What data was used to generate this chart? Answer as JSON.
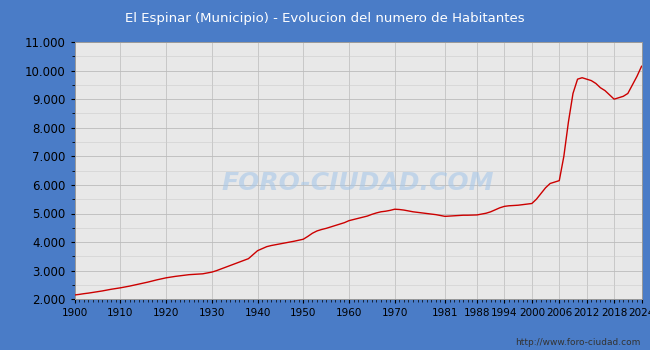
{
  "title": "El Espinar (Municipio) - Evolucion del numero de Habitantes",
  "title_bg_color": "#4a7cc7",
  "title_text_color": "#ffffff",
  "line_color": "#cc0000",
  "bg_color": "#4a7cc7",
  "plot_bg_color": "#e8e8e8",
  "watermark": "FORO-CIUDAD.COM",
  "url": "http://www.foro-ciudad.com",
  "years_full": [
    1900,
    1901,
    1902,
    1903,
    1904,
    1905,
    1906,
    1907,
    1908,
    1909,
    1910,
    1911,
    1912,
    1913,
    1914,
    1915,
    1916,
    1917,
    1918,
    1919,
    1920,
    1921,
    1922,
    1923,
    1924,
    1925,
    1926,
    1927,
    1928,
    1929,
    1930,
    1931,
    1932,
    1933,
    1934,
    1935,
    1936,
    1937,
    1938,
    1939,
    1940,
    1941,
    1942,
    1943,
    1944,
    1945,
    1946,
    1947,
    1948,
    1949,
    1950,
    1951,
    1952,
    1953,
    1954,
    1955,
    1956,
    1957,
    1958,
    1959,
    1960,
    1961,
    1962,
    1963,
    1964,
    1965,
    1966,
    1967,
    1968,
    1969,
    1970,
    1971,
    1972,
    1973,
    1974,
    1975,
    1976,
    1977,
    1978,
    1979,
    1981,
    1982,
    1983,
    1984,
    1985,
    1986,
    1987,
    1988,
    1989,
    1990,
    1991,
    1992,
    1993,
    1994,
    1995,
    1996,
    1997,
    1998,
    1999,
    2000,
    2001,
    2002,
    2003,
    2004,
    2005,
    2006,
    2007,
    2008,
    2009,
    2010,
    2011,
    2012,
    2013,
    2014,
    2015,
    2016,
    2017,
    2018,
    2019,
    2020,
    2021,
    2022,
    2023,
    2024
  ],
  "population_full": [
    2150,
    2170,
    2195,
    2215,
    2240,
    2265,
    2290,
    2320,
    2350,
    2375,
    2400,
    2430,
    2460,
    2495,
    2530,
    2565,
    2600,
    2640,
    2680,
    2715,
    2750,
    2775,
    2800,
    2820,
    2840,
    2860,
    2870,
    2880,
    2890,
    2920,
    2950,
    3000,
    3060,
    3120,
    3180,
    3240,
    3300,
    3360,
    3420,
    3560,
    3700,
    3770,
    3840,
    3880,
    3910,
    3940,
    3970,
    4000,
    4030,
    4065,
    4100,
    4200,
    4310,
    4390,
    4440,
    4480,
    4530,
    4580,
    4630,
    4680,
    4750,
    4790,
    4830,
    4870,
    4910,
    4970,
    5020,
    5060,
    5080,
    5110,
    5150,
    5140,
    5120,
    5090,
    5060,
    5040,
    5020,
    5000,
    4980,
    4960,
    4900,
    4910,
    4920,
    4930,
    4940,
    4940,
    4945,
    4950,
    4980,
    5010,
    5060,
    5130,
    5200,
    5250,
    5270,
    5280,
    5290,
    5310,
    5330,
    5350,
    5500,
    5700,
    5900,
    6050,
    6100,
    6150,
    7000,
    8200,
    9200,
    9700,
    9750,
    9700,
    9650,
    9550,
    9400,
    9300,
    9150,
    9000,
    9050,
    9100,
    9200,
    9500,
    9800,
    10150
  ],
  "xlim": [
    1900,
    2024
  ],
  "ylim": [
    2000,
    11000
  ],
  "yticks": [
    2000,
    3000,
    4000,
    5000,
    6000,
    7000,
    8000,
    9000,
    10000,
    11000
  ],
  "xtick_labels": [
    "1900",
    "1910",
    "1920",
    "1930",
    "1940",
    "1950",
    "1960",
    "1970",
    "1981",
    "1988",
    "1994",
    "2000",
    "2006",
    "2012",
    "2018",
    "2024"
  ],
  "xtick_positions": [
    1900,
    1910,
    1920,
    1930,
    1940,
    1950,
    1960,
    1970,
    1981,
    1988,
    1994,
    2000,
    2006,
    2012,
    2018,
    2024
  ]
}
